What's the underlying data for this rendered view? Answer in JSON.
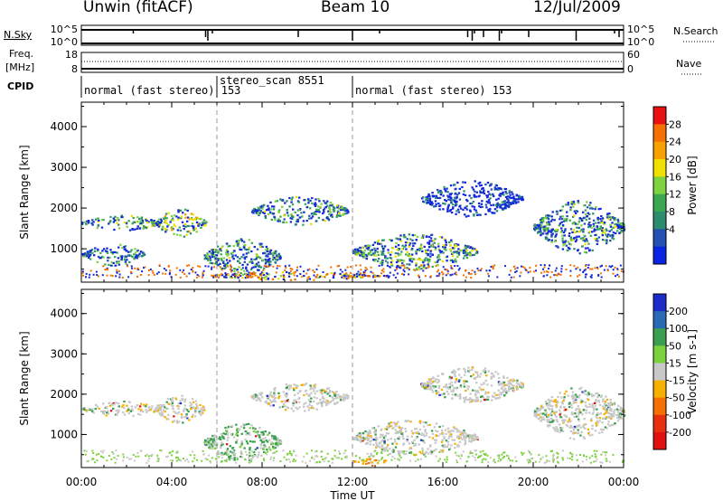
{
  "header": {
    "station": "Unwin (fitACF)",
    "beam": "Beam 10",
    "date": "12/Jul/2009"
  },
  "chart_data": [
    {
      "type": "line",
      "title": "",
      "panel": "noise",
      "ylabel": "N.Sky",
      "ylabel_right": "N.Search",
      "yticks_left": [
        "10^5",
        "10^0"
      ],
      "yticks_right": [
        "10^5",
        "10^0"
      ],
      "dropouts_hours": [
        2.3,
        5.5,
        5.6,
        5.8,
        9.6,
        12.0,
        13.2,
        17.1,
        17.3,
        17.4,
        17.8,
        18.5,
        18.6,
        19.8,
        21.9,
        23.6,
        23.8
      ]
    },
    {
      "type": "line",
      "panel": "frequency",
      "ylabel": "Freq. [MHz]",
      "ylabel_right": "Nave",
      "yticks_left": [
        "18",
        "8"
      ],
      "yticks_right": [
        "60",
        "0"
      ],
      "ylim": [
        8,
        18
      ],
      "freq_mhz": 9.5,
      "nave": 35
    },
    {
      "type": "table",
      "panel": "cpid",
      "ylabel": "CPID",
      "segments": [
        {
          "start_hour": 0,
          "end_hour": 6,
          "label": "normal (fast stereo) 153"
        },
        {
          "start_hour": 6,
          "end_hour": 12,
          "label": "stereo_scan 8551"
        },
        {
          "start_hour": 12,
          "end_hour": 24,
          "label": "normal (fast stereo) 153"
        }
      ]
    },
    {
      "type": "heatmap",
      "panel": "power",
      "ylabel": "Slant Range [km]",
      "yticks": [
        "1000",
        "2000",
        "3000",
        "4000"
      ],
      "ylim": [
        180,
        4600
      ],
      "xlim": [
        0,
        24
      ],
      "colorbar_label": "Power [dB]",
      "colorbar_ticks": [
        "4",
        "8",
        "12",
        "16",
        "20",
        "24",
        "28"
      ],
      "colorbar_colors": [
        "#0a24e6",
        "#2450b4",
        "#2e8c6e",
        "#3aa850",
        "#7fd240",
        "#f0e000",
        "#f8a000",
        "#f47000",
        "#e81010"
      ],
      "echo_regions": [
        {
          "hour_start": 0.0,
          "hour_end": 3.5,
          "range_min": 1450,
          "range_max": 1850,
          "power_db": 14
        },
        {
          "hour_start": 0.0,
          "hour_end": 2.8,
          "range_min": 600,
          "range_max": 1150,
          "power_db": 10
        },
        {
          "hour_start": 3.2,
          "hour_end": 5.5,
          "range_min": 1300,
          "range_max": 2000,
          "power_db": 16
        },
        {
          "hour_start": 5.4,
          "hour_end": 8.8,
          "range_min": 350,
          "range_max": 1300,
          "power_db": 12
        },
        {
          "hour_start": 7.5,
          "hour_end": 11.8,
          "range_min": 1600,
          "range_max": 2300,
          "power_db": 12
        },
        {
          "hour_start": 12.0,
          "hour_end": 17.5,
          "range_min": 500,
          "range_max": 1400,
          "power_db": 14
        },
        {
          "hour_start": 15.0,
          "hour_end": 19.5,
          "range_min": 1800,
          "range_max": 2700,
          "power_db": 6
        },
        {
          "hour_start": 20.0,
          "hour_end": 24.0,
          "range_min": 900,
          "range_max": 2200,
          "power_db": 12
        },
        {
          "hour_start": 5.5,
          "hour_end": 13.5,
          "range_min": 250,
          "range_max": 450,
          "power_db": 22
        }
      ]
    },
    {
      "type": "heatmap",
      "panel": "velocity",
      "ylabel": "Slant Range [km]",
      "yticks": [
        "1000",
        "2000",
        "3000",
        "4000"
      ],
      "ylim": [
        180,
        4600
      ],
      "xlim": [
        0,
        24
      ],
      "xticks": [
        "00:00",
        "04:00",
        "08:00",
        "12:00",
        "16:00",
        "20:00",
        "00:00"
      ],
      "xlabel": "Time UT",
      "colorbar_label": "Velocity [m s-1]",
      "colorbar_ticks": [
        "200",
        "100",
        "50",
        "15",
        "-15",
        "-50",
        "-100",
        "-200"
      ],
      "colorbar_colors": [
        "#1c2cc8",
        "#2a6ab4",
        "#3aa050",
        "#7cd23c",
        "#c8c8c8",
        "#f8b000",
        "#f47000",
        "#e83010",
        "#e01010"
      ],
      "echo_regions": [
        {
          "hour_start": 0.0,
          "hour_end": 3.5,
          "range_min": 1450,
          "range_max": 1850,
          "velocity": 0
        },
        {
          "hour_start": 3.2,
          "hour_end": 5.5,
          "range_min": 1300,
          "range_max": 2000,
          "velocity": 0
        },
        {
          "hour_start": 5.4,
          "hour_end": 8.8,
          "range_min": 350,
          "range_max": 1300,
          "velocity": 20
        },
        {
          "hour_start": 7.5,
          "hour_end": 11.8,
          "range_min": 1600,
          "range_max": 2300,
          "velocity": 0
        },
        {
          "hour_start": 12.0,
          "hour_end": 17.5,
          "range_min": 500,
          "range_max": 1400,
          "velocity": 0
        },
        {
          "hour_start": 15.0,
          "hour_end": 19.5,
          "range_min": 1800,
          "range_max": 2700,
          "velocity": 0
        },
        {
          "hour_start": 20.0,
          "hour_end": 24.0,
          "range_min": 900,
          "range_max": 2200,
          "velocity": 0
        },
        {
          "hour_start": 12.0,
          "hour_end": 13.5,
          "range_min": 250,
          "range_max": 450,
          "velocity": -40
        }
      ]
    }
  ]
}
